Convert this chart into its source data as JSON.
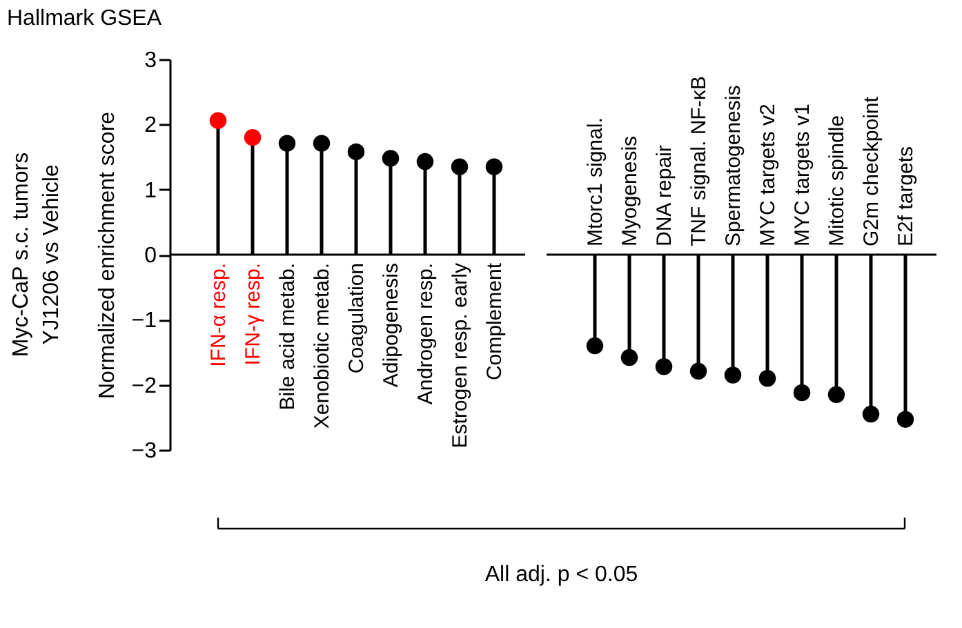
{
  "chart_data": [
    {
      "type": "lollipop",
      "title": "Hallmark GSEA",
      "ylabel": "Normalized enrichment score",
      "categories": [
        "IFN-α resp.",
        "IFN-γ resp.",
        "Bile acid metab.",
        "Xenobiotic metab.",
        "Coagulation",
        "Adipogenesis",
        "Androgen resp.",
        "Estrogen resp. early",
        "Complement"
      ],
      "series": [
        {
          "values": [
            2.06,
            1.8,
            1.71,
            1.71,
            1.58,
            1.48,
            1.43,
            1.35,
            1.35
          ],
          "colors": [
            "#ff0000",
            "#ff0000",
            "#000000",
            "#000000",
            "#000000",
            "#000000",
            "#000000",
            "#000000",
            "#000000"
          ]
        }
      ],
      "ylim": [
        -3,
        3
      ],
      "yticks": [
        -3,
        -2,
        -1,
        0,
        1,
        2,
        3
      ],
      "grid": false,
      "marker": "circle",
      "annotations": [
        "Myc-CaP s.c. tumors\nYJ1206 vs Vehicle",
        "All adj. p < 0.05"
      ]
    },
    {
      "type": "lollipop",
      "categories": [
        "Mtorc1 signal.",
        "Myogenesis",
        "DNA repair",
        "TNF signal. NF-κB",
        "Spermatogenesis",
        "MYC targets v2",
        "MYC targets v1",
        "Mitotic spindle",
        "G2m checkpoint",
        "E2f targets"
      ],
      "series": [
        {
          "values": [
            -1.4,
            -1.58,
            -1.72,
            -1.79,
            -1.85,
            -1.9,
            -2.12,
            -2.15,
            -2.45,
            -2.53
          ],
          "colors": [
            "#000000",
            "#000000",
            "#000000",
            "#000000",
            "#000000",
            "#000000",
            "#000000",
            "#000000",
            "#000000",
            "#000000"
          ]
        }
      ],
      "ylim": [
        -3,
        3
      ],
      "grid": false,
      "marker": "circle",
      "tick_labels": "x"
    }
  ]
}
